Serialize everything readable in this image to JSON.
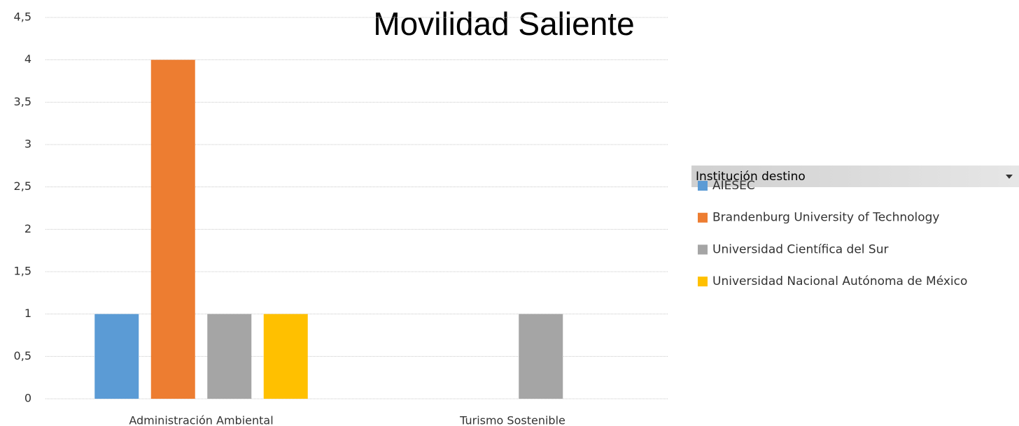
{
  "chart_data": {
    "type": "bar",
    "title": "Movilidad Saliente",
    "categories": [
      "Administración Ambiental",
      "Turismo Sostenible"
    ],
    "series": [
      {
        "name": "AIESEC",
        "color": "#5b9bd5",
        "values": [
          1,
          null
        ]
      },
      {
        "name": "Brandenburg University of Technology",
        "color": "#ed7d31",
        "values": [
          4,
          null
        ]
      },
      {
        "name": "Universidad Científica del Sur",
        "color": "#a5a5a5",
        "values": [
          1,
          1
        ]
      },
      {
        "name": "Universidad Nacional Autónoma de México",
        "color": "#ffc000",
        "values": [
          1,
          null
        ]
      }
    ],
    "legend_title": "Institución destino",
    "ylim": [
      0,
      4.5
    ],
    "yticks": [
      0,
      {
        "value": 0.5,
        "label": "0,5"
      },
      1,
      {
        "value": 1.5,
        "label": "1,5"
      },
      2,
      {
        "value": 2.5,
        "label": "2,5"
      },
      3,
      {
        "value": 3.5,
        "label": "3,5"
      },
      4,
      {
        "value": 4.5,
        "label": "4,5"
      }
    ],
    "grid": true,
    "legend": "right"
  }
}
